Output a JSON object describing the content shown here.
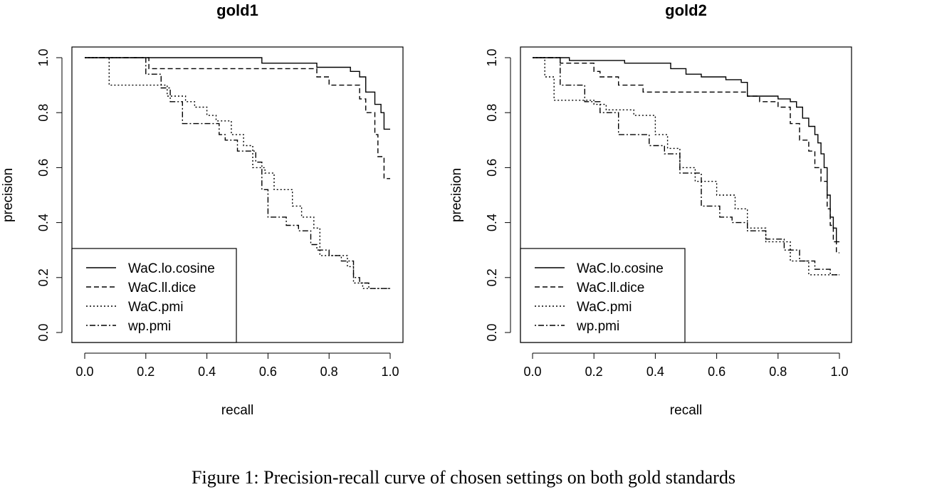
{
  "caption": "Figure 1: Precision-recall curve of chosen settings on both gold standards",
  "chart_data": [
    {
      "type": "line",
      "title": "gold1",
      "xlabel": "recall",
      "ylabel": "precision",
      "xlim": [
        0,
        1
      ],
      "ylim": [
        0,
        1
      ],
      "xticks": [
        "0.0",
        "0.2",
        "0.4",
        "0.6",
        "0.8",
        "1.0"
      ],
      "yticks": [
        "0.0",
        "0.2",
        "0.4",
        "0.6",
        "0.8",
        "1.0"
      ],
      "grid": false,
      "legend_position": "bottom-left",
      "step": true,
      "series": [
        {
          "name": "WaC.lo.cosine",
          "dash": "solid",
          "x": [
            0,
            0.58,
            0.58,
            0.76,
            0.76,
            0.87,
            0.87,
            0.9,
            0.9,
            0.92,
            0.92,
            0.95,
            0.95,
            0.97,
            0.97,
            0.98,
            0.98,
            1.0
          ],
          "y": [
            1.0,
            1.0,
            0.98,
            0.98,
            0.965,
            0.965,
            0.95,
            0.95,
            0.93,
            0.93,
            0.875,
            0.875,
            0.83,
            0.83,
            0.8,
            0.8,
            0.74,
            0.74
          ]
        },
        {
          "name": "WaC.ll.dice",
          "dash": "dashed",
          "x": [
            0,
            0.21,
            0.21,
            0.28,
            0.28,
            0.76,
            0.76,
            0.8,
            0.8,
            0.9,
            0.9,
            0.92,
            0.92,
            0.95,
            0.95,
            0.96,
            0.96,
            0.98,
            0.98,
            1.0
          ],
          "y": [
            1.0,
            1.0,
            0.96,
            0.96,
            0.96,
            0.96,
            0.93,
            0.93,
            0.9,
            0.9,
            0.85,
            0.85,
            0.8,
            0.8,
            0.72,
            0.72,
            0.64,
            0.64,
            0.56,
            0.56
          ]
        },
        {
          "name": "WaC.pmi",
          "dash": "dotted",
          "x": [
            0,
            0.08,
            0.08,
            0.27,
            0.27,
            0.33,
            0.33,
            0.36,
            0.36,
            0.4,
            0.4,
            0.43,
            0.43,
            0.48,
            0.48,
            0.52,
            0.52,
            0.55,
            0.55,
            0.59,
            0.59,
            0.62,
            0.62,
            0.68,
            0.68,
            0.71,
            0.71,
            0.75,
            0.75,
            0.77,
            0.77,
            0.86,
            0.86,
            0.88,
            0.88,
            0.91,
            0.91,
            1.0
          ],
          "y": [
            1.0,
            1.0,
            0.9,
            0.9,
            0.86,
            0.86,
            0.84,
            0.84,
            0.82,
            0.82,
            0.79,
            0.79,
            0.77,
            0.77,
            0.72,
            0.72,
            0.68,
            0.68,
            0.6,
            0.6,
            0.58,
            0.58,
            0.52,
            0.52,
            0.46,
            0.46,
            0.42,
            0.42,
            0.38,
            0.38,
            0.28,
            0.28,
            0.24,
            0.24,
            0.18,
            0.18,
            0.16,
            0.16
          ]
        },
        {
          "name": "wp.pmi",
          "dash": "dotdash",
          "x": [
            0,
            0.2,
            0.2,
            0.25,
            0.25,
            0.28,
            0.28,
            0.32,
            0.32,
            0.44,
            0.44,
            0.46,
            0.46,
            0.5,
            0.5,
            0.56,
            0.56,
            0.58,
            0.58,
            0.6,
            0.6,
            0.66,
            0.66,
            0.7,
            0.7,
            0.74,
            0.74,
            0.76,
            0.76,
            0.8,
            0.8,
            0.84,
            0.84,
            0.88,
            0.88,
            0.9,
            0.9,
            0.93,
            0.93,
            1.0
          ],
          "y": [
            1.0,
            1.0,
            0.94,
            0.94,
            0.89,
            0.89,
            0.84,
            0.84,
            0.76,
            0.76,
            0.72,
            0.72,
            0.7,
            0.7,
            0.66,
            0.66,
            0.62,
            0.62,
            0.52,
            0.52,
            0.42,
            0.42,
            0.39,
            0.39,
            0.37,
            0.37,
            0.32,
            0.32,
            0.3,
            0.3,
            0.28,
            0.28,
            0.26,
            0.26,
            0.2,
            0.2,
            0.18,
            0.18,
            0.16,
            0.16
          ]
        }
      ]
    },
    {
      "type": "line",
      "title": "gold2",
      "xlabel": "recall",
      "ylabel": "precision",
      "xlim": [
        0,
        1
      ],
      "ylim": [
        0,
        1
      ],
      "xticks": [
        "0.0",
        "0.2",
        "0.4",
        "0.6",
        "0.8",
        "1.0"
      ],
      "yticks": [
        "0.0",
        "0.2",
        "0.4",
        "0.6",
        "0.8",
        "1.0"
      ],
      "grid": false,
      "legend_position": "bottom-left",
      "step": true,
      "series": [
        {
          "name": "WaC.lo.cosine",
          "dash": "solid",
          "x": [
            0,
            0.12,
            0.12,
            0.3,
            0.3,
            0.45,
            0.45,
            0.5,
            0.5,
            0.55,
            0.55,
            0.63,
            0.63,
            0.68,
            0.68,
            0.7,
            0.7,
            0.8,
            0.8,
            0.84,
            0.84,
            0.86,
            0.86,
            0.88,
            0.88,
            0.9,
            0.9,
            0.92,
            0.92,
            0.93,
            0.93,
            0.94,
            0.94,
            0.95,
            0.95,
            0.96,
            0.96,
            0.97,
            0.97,
            0.98,
            0.98,
            0.99,
            0.99,
            1.0
          ],
          "y": [
            1.0,
            1.0,
            0.99,
            0.99,
            0.98,
            0.98,
            0.96,
            0.96,
            0.94,
            0.94,
            0.93,
            0.93,
            0.92,
            0.92,
            0.91,
            0.91,
            0.86,
            0.86,
            0.85,
            0.85,
            0.84,
            0.84,
            0.82,
            0.82,
            0.78,
            0.78,
            0.75,
            0.75,
            0.72,
            0.72,
            0.69,
            0.69,
            0.65,
            0.65,
            0.6,
            0.6,
            0.5,
            0.5,
            0.42,
            0.42,
            0.38,
            0.38,
            0.33,
            0.33
          ]
        },
        {
          "name": "WaC.ll.dice",
          "dash": "dashed",
          "x": [
            0,
            0.09,
            0.09,
            0.2,
            0.2,
            0.22,
            0.22,
            0.28,
            0.28,
            0.36,
            0.36,
            0.7,
            0.7,
            0.74,
            0.74,
            0.8,
            0.8,
            0.84,
            0.84,
            0.87,
            0.87,
            0.9,
            0.9,
            0.92,
            0.92,
            0.94,
            0.94,
            0.96,
            0.96,
            0.97,
            0.97,
            0.98,
            0.98,
            0.99,
            0.99,
            1.0
          ],
          "y": [
            1.0,
            1.0,
            0.98,
            0.98,
            0.95,
            0.95,
            0.93,
            0.93,
            0.9,
            0.9,
            0.875,
            0.875,
            0.86,
            0.86,
            0.84,
            0.84,
            0.82,
            0.82,
            0.76,
            0.76,
            0.7,
            0.7,
            0.66,
            0.66,
            0.6,
            0.6,
            0.55,
            0.55,
            0.45,
            0.45,
            0.39,
            0.39,
            0.33,
            0.33,
            0.29,
            0.29
          ]
        },
        {
          "name": "WaC.pmi",
          "dash": "dotted",
          "x": [
            0,
            0.04,
            0.04,
            0.07,
            0.07,
            0.2,
            0.2,
            0.24,
            0.24,
            0.33,
            0.33,
            0.4,
            0.4,
            0.44,
            0.44,
            0.48,
            0.48,
            0.53,
            0.53,
            0.6,
            0.6,
            0.66,
            0.66,
            0.7,
            0.7,
            0.76,
            0.76,
            0.84,
            0.84,
            0.9,
            0.9,
            1.0
          ],
          "y": [
            1.0,
            1.0,
            0.93,
            0.93,
            0.845,
            0.845,
            0.83,
            0.83,
            0.81,
            0.81,
            0.79,
            0.79,
            0.72,
            0.72,
            0.67,
            0.67,
            0.6,
            0.6,
            0.55,
            0.55,
            0.5,
            0.5,
            0.45,
            0.45,
            0.38,
            0.38,
            0.33,
            0.33,
            0.26,
            0.26,
            0.21,
            0.21
          ]
        },
        {
          "name": "wp.pmi",
          "dash": "dotdash",
          "x": [
            0,
            0.09,
            0.09,
            0.17,
            0.17,
            0.22,
            0.22,
            0.28,
            0.28,
            0.38,
            0.38,
            0.43,
            0.43,
            0.48,
            0.48,
            0.55,
            0.55,
            0.61,
            0.61,
            0.65,
            0.65,
            0.7,
            0.7,
            0.76,
            0.76,
            0.82,
            0.82,
            0.87,
            0.87,
            0.92,
            0.92,
            0.97,
            0.97,
            1.0
          ],
          "y": [
            1.0,
            1.0,
            0.9,
            0.9,
            0.84,
            0.84,
            0.8,
            0.8,
            0.72,
            0.72,
            0.68,
            0.68,
            0.65,
            0.65,
            0.58,
            0.58,
            0.46,
            0.46,
            0.42,
            0.42,
            0.4,
            0.4,
            0.37,
            0.37,
            0.34,
            0.34,
            0.3,
            0.3,
            0.26,
            0.26,
            0.23,
            0.23,
            0.21,
            0.21
          ]
        }
      ]
    }
  ]
}
